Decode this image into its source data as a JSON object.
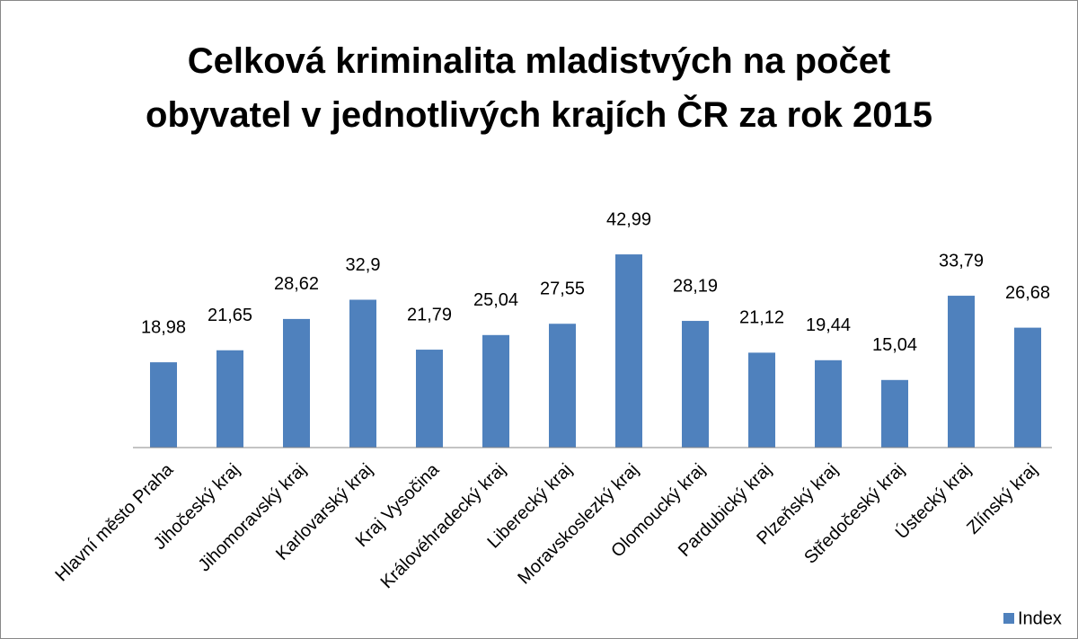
{
  "chart_data": {
    "type": "bar",
    "title": "Celková kriminalita mladistvých na počet obyvatel v jednotlivých krajích ČR za rok 2015",
    "categories": [
      "Hlavní město Praha",
      "Jihočeský kraj",
      "Jihomoravský kraj",
      "Karlovarský kraj",
      "Kraj Vysočina",
      "Královéhradecký kraj",
      "Liberecký kraj",
      "Moravskoslezký kraj",
      "Olomoucký kraj",
      "Pardubický kraj",
      "Plzeňský kraj",
      "Středočeský kraj",
      "Ústecký kraj",
      "Zlínský kraj"
    ],
    "series": [
      {
        "name": "Index",
        "color": "#4f81bd",
        "values": [
          18.98,
          21.65,
          28.62,
          32.9,
          21.79,
          25.04,
          27.55,
          42.99,
          28.19,
          21.12,
          19.44,
          15.04,
          33.79,
          26.68
        ],
        "value_labels": [
          "18,98",
          "21,65",
          "28,62",
          "32,9",
          "21,79",
          "25,04",
          "27,55",
          "42,99",
          "28,19",
          "21,12",
          "19,44",
          "15,04",
          "33,79",
          "26,68"
        ]
      }
    ],
    "legend": "bottom-right"
  }
}
